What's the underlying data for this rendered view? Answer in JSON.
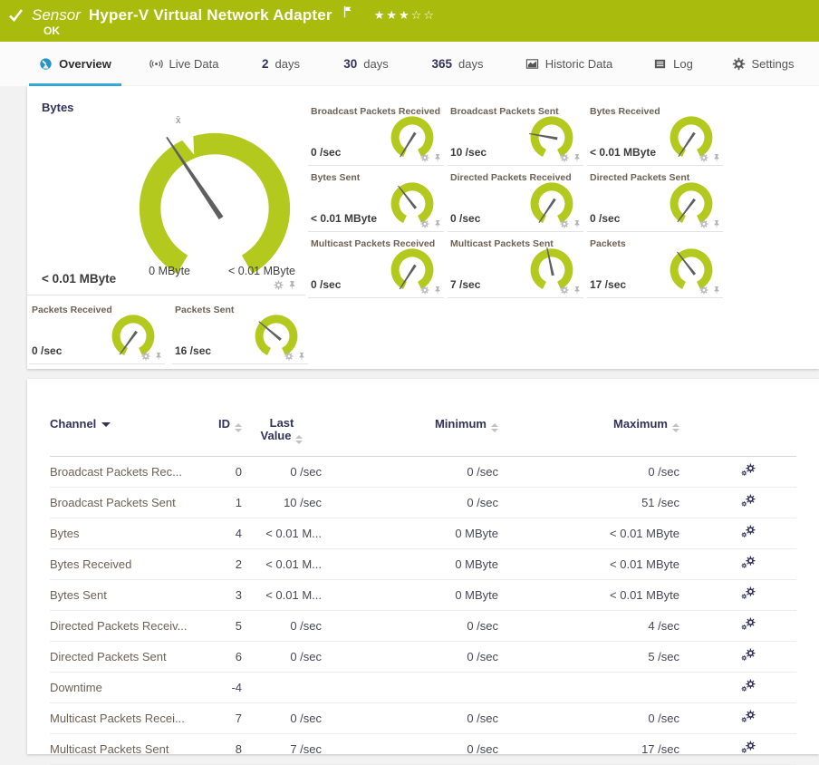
{
  "header": {
    "kind": "Sensor",
    "title": "Hyper-V Virtual Network Adapter",
    "status": "OK",
    "stars": "★★★☆☆",
    "brand_color": "#a9bc0d"
  },
  "tabs": [
    {
      "label": "Overview",
      "active": true
    },
    {
      "label": "Live Data"
    },
    {
      "num": "2",
      "label": "days"
    },
    {
      "num": "30",
      "label": "days"
    },
    {
      "num": "365",
      "label": "days"
    },
    {
      "label": "Historic Data"
    },
    {
      "label": "Log"
    },
    {
      "label": "Settings"
    }
  ],
  "gauges": {
    "accent_color": "#b4c91e",
    "primary": {
      "title": "Bytes",
      "value": "< 0.01 MByte",
      "min_label": "0 MByte",
      "max_label": "< 0.01 MByte",
      "mean_marker": "x̄",
      "needle_deg": -34
    },
    "small": [
      {
        "title": "Broadcast Packets Received",
        "value": "0 /sec",
        "needle_deg": 212
      },
      {
        "title": "Broadcast Packets Sent",
        "value": "10 /sec",
        "needle_deg": 280
      },
      {
        "title": "Bytes Received",
        "value": "< 0.01 MByte",
        "needle_deg": 214
      },
      {
        "title": "Bytes Sent",
        "value": "< 0.01 MByte",
        "needle_deg": 322
      },
      {
        "title": "Directed Packets Received",
        "value": "0 /sec",
        "needle_deg": 214
      },
      {
        "title": "Directed Packets Sent",
        "value": "0 /sec",
        "needle_deg": 217
      },
      {
        "title": "Multicast Packets Received",
        "value": "0 /sec",
        "needle_deg": 213
      },
      {
        "title": "Multicast Packets Sent",
        "value": "7 /sec",
        "needle_deg": 348
      },
      {
        "title": "Packets",
        "value": "17 /sec",
        "needle_deg": 322
      },
      {
        "title": "Packets Received",
        "value": "0 /sec",
        "needle_deg": 216
      },
      {
        "title": "Packets Sent",
        "value": "16 /sec",
        "needle_deg": 310
      }
    ]
  },
  "table": {
    "headers": {
      "channel": "Channel",
      "id": "ID",
      "last_line1": "Last",
      "last_line2": "Value",
      "minimum": "Minimum",
      "maximum": "Maximum"
    },
    "rows": [
      {
        "channel": "Broadcast Packets Rec...",
        "id": "0",
        "last_value": "0 /sec",
        "minimum": "0 /sec",
        "maximum": "0 /sec"
      },
      {
        "channel": "Broadcast Packets Sent",
        "id": "1",
        "last_value": "10 /sec",
        "minimum": "0 /sec",
        "maximum": "51 /sec"
      },
      {
        "channel": "Bytes",
        "id": "4",
        "last_value": "< 0.01 M...",
        "minimum": "0 MByte",
        "maximum": "< 0.01 MByte"
      },
      {
        "channel": "Bytes Received",
        "id": "2",
        "last_value": "< 0.01 M...",
        "minimum": "0 MByte",
        "maximum": "< 0.01 MByte"
      },
      {
        "channel": "Bytes Sent",
        "id": "3",
        "last_value": "< 0.01 M...",
        "minimum": "0 MByte",
        "maximum": "< 0.01 MByte"
      },
      {
        "channel": "Directed Packets Receiv...",
        "id": "5",
        "last_value": "0 /sec",
        "minimum": "0 /sec",
        "maximum": "4 /sec"
      },
      {
        "channel": "Directed Packets Sent",
        "id": "6",
        "last_value": "0 /sec",
        "minimum": "0 /sec",
        "maximum": "5 /sec"
      },
      {
        "channel": "Downtime",
        "id": "-4",
        "last_value": "",
        "minimum": "",
        "maximum": ""
      },
      {
        "channel": "Multicast Packets Recei...",
        "id": "7",
        "last_value": "0 /sec",
        "minimum": "0 /sec",
        "maximum": "0 /sec"
      },
      {
        "channel": "Multicast Packets Sent",
        "id": "8",
        "last_value": "7 /sec",
        "minimum": "0 /sec",
        "maximum": "17 /sec"
      }
    ]
  }
}
